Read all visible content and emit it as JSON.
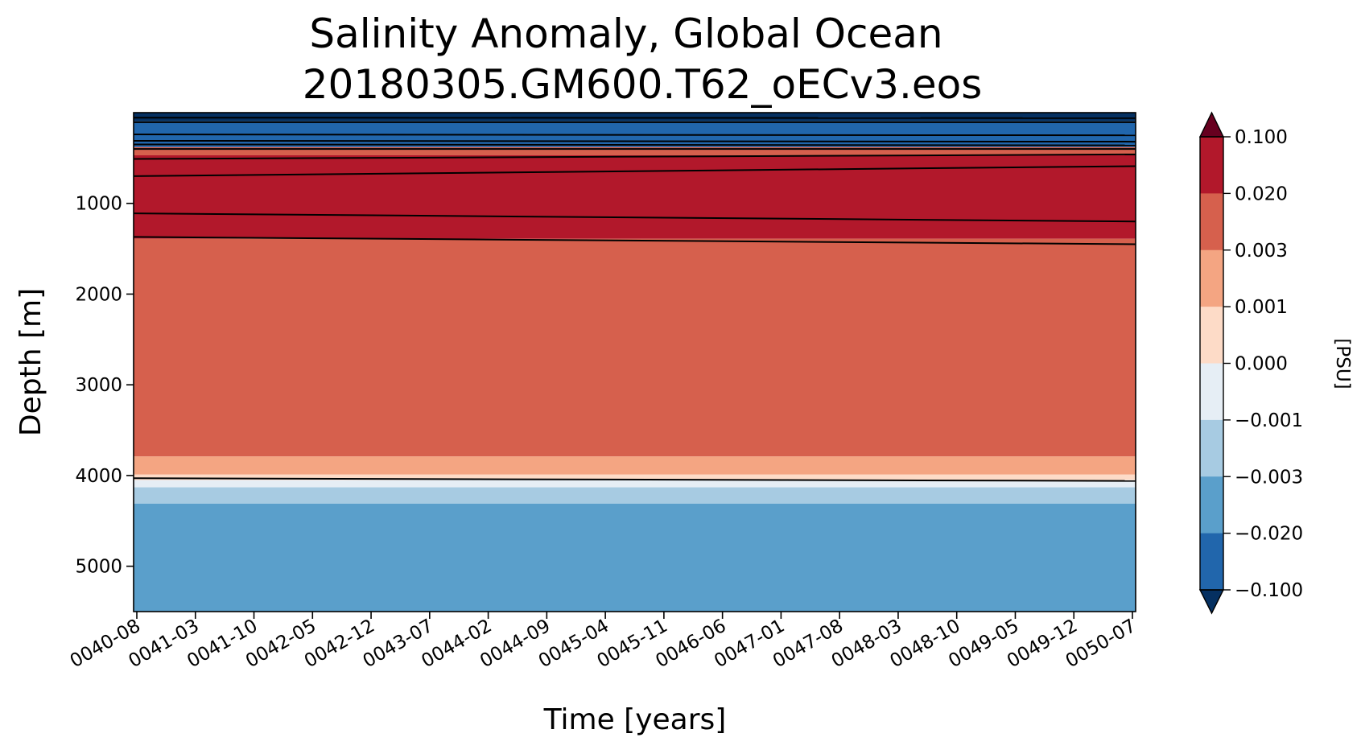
{
  "chart_data": {
    "type": "heatmap",
    "title": "Salinity Anomaly, Global Ocean",
    "subtitle": "20180305.GM600.T62_oECv3.eos",
    "xlabel": "Time [years]",
    "ylabel": "Depth [m]",
    "colorbar_label": "[PSU]",
    "x_tick_labels": [
      "0040-08",
      "0041-03",
      "0041-10",
      "0042-05",
      "0042-12",
      "0043-07",
      "0044-02",
      "0044-09",
      "0045-04",
      "0045-11",
      "0046-06",
      "0047-01",
      "0047-08",
      "0048-03",
      "0048-10",
      "0049-05",
      "0049-12",
      "0050-07"
    ],
    "y_ticks": [
      1000,
      2000,
      3000,
      4000,
      5000
    ],
    "y_tick_labels": [
      "1000",
      "2000",
      "3000",
      "4000",
      "5000"
    ],
    "ylim": [
      5500,
      0
    ],
    "y_inverted": true,
    "colorbar_levels": [
      "0.100",
      "0.020",
      "0.003",
      "0.001",
      "0.000",
      "−0.001",
      "−0.003",
      "−0.020",
      "−0.100"
    ],
    "colorbar_colors": [
      "#b2182b",
      "#d6604d",
      "#f4a582",
      "#fddbc7",
      "#e6eef5",
      "#a7cbe2",
      "#5a9fcb",
      "#2166ac"
    ],
    "extend_colors": {
      "max": "#67001f",
      "min": "#053061"
    },
    "bands": [
      {
        "top": 50,
        "bottom": 95,
        "color": "#053061"
      },
      {
        "top": 95,
        "bottom": 380,
        "color": "#2166ac"
      },
      {
        "top": 380,
        "bottom": 470,
        "color": "#d6604d"
      },
      {
        "top": 470,
        "bottom": 1390,
        "color": "#b2182b"
      },
      {
        "top": 1390,
        "bottom": 3790,
        "color": "#d6604d"
      },
      {
        "top": 3790,
        "bottom": 3990,
        "color": "#f4a582"
      },
      {
        "top": 3990,
        "bottom": 4050,
        "color": "#fddbc7"
      },
      {
        "top": 4050,
        "bottom": 4130,
        "color": "#e6eef5"
      },
      {
        "top": 4130,
        "bottom": 4310,
        "color": "#a7cbe2"
      },
      {
        "top": 4310,
        "bottom": 5500,
        "color": "#5a9fcb"
      }
    ],
    "contours": [
      {
        "start": 55,
        "end": 60
      },
      {
        "start": 105,
        "end": 105
      },
      {
        "start": 240,
        "end": 250
      },
      {
        "start": 310,
        "end": 320
      },
      {
        "start": 350,
        "end": 360
      },
      {
        "start": 400,
        "end": 400
      },
      {
        "start": 510,
        "end": 460
      },
      {
        "start": 700,
        "end": 590
      },
      {
        "start": 1110,
        "end": 1200
      },
      {
        "start": 1370,
        "end": 1450
      },
      {
        "start": 4030,
        "end": 4060
      }
    ]
  }
}
